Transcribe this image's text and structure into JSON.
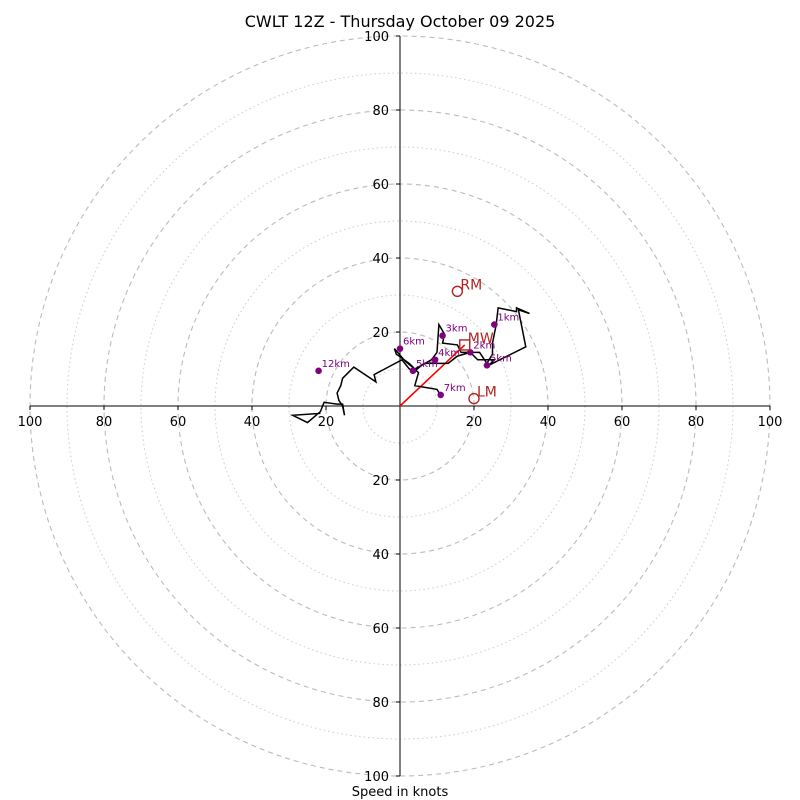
{
  "chart_data": {
    "type": "hodograph",
    "title": "CWLT 12Z - Thursday October 09 2025",
    "xlabel": "Speed in knots",
    "rmax": 100,
    "ring_major": [
      20,
      40,
      60,
      80,
      100
    ],
    "ring_minor": [
      10,
      30,
      50,
      70,
      90
    ],
    "x_tick_labels": [
      "100",
      "80",
      "60",
      "40",
      "20",
      "20",
      "40",
      "60",
      "80",
      "100"
    ],
    "x_tick_values": [
      -100,
      -80,
      -60,
      -40,
      -20,
      20,
      40,
      60,
      80,
      100
    ],
    "y_tick_labels": [
      "100",
      "80",
      "60",
      "40",
      "20",
      "20",
      "40",
      "60",
      "80",
      "100"
    ],
    "y_tick_values": [
      100,
      80,
      60,
      40,
      20,
      -20,
      -40,
      -60,
      -80,
      -100
    ],
    "colors": {
      "trace": "#000000",
      "markers": "#800080",
      "storm": "#b22222",
      "shear_vector": "#ff0000",
      "grid": "#bbbbbb"
    },
    "trace": [
      [
        10.8,
        3.2
      ],
      [
        10.0,
        4.5
      ],
      [
        4.0,
        5.5
      ],
      [
        5.0,
        9.0
      ],
      [
        2.5,
        11.5
      ],
      [
        -1.0,
        14.0
      ],
      [
        -1.5,
        15.5
      ],
      [
        1.5,
        12.0
      ],
      [
        4.0,
        10.0
      ],
      [
        8.5,
        12.5
      ],
      [
        10.0,
        14.5
      ],
      [
        10.5,
        22.0
      ],
      [
        12.0,
        19.5
      ],
      [
        11.5,
        17.0
      ],
      [
        15.5,
        16.5
      ],
      [
        16.5,
        14.5
      ],
      [
        19.0,
        14.5
      ],
      [
        21.5,
        14.5
      ],
      [
        23.5,
        11.5
      ],
      [
        25.0,
        14.0
      ],
      [
        25.0,
        17.0
      ],
      [
        26.0,
        22.0
      ],
      [
        26.5,
        26.5
      ],
      [
        31.5,
        25.5
      ],
      [
        31.5,
        26.5
      ],
      [
        35.0,
        25.0
      ],
      [
        32.0,
        26.0
      ],
      [
        34.0,
        16.0
      ],
      [
        24.0,
        11.0
      ],
      [
        25.5,
        12.5
      ],
      [
        21.0,
        12.5
      ],
      [
        19.0,
        14.5
      ],
      [
        15.5,
        13.5
      ],
      [
        13.0,
        11.5
      ],
      [
        9.5,
        11.5
      ],
      [
        6.5,
        11.5
      ],
      [
        4.0,
        9.5
      ],
      [
        2.5,
        10.0
      ],
      [
        0.5,
        12.5
      ],
      [
        -7.0,
        8.5
      ],
      [
        -6.5,
        6.5
      ],
      [
        -12.5,
        10.5
      ],
      [
        -15.5,
        7.5
      ],
      [
        -16.0,
        5.5
      ],
      [
        -17.0,
        3.5
      ],
      [
        -16.5,
        1.5
      ],
      [
        -15.5,
        0.0
      ],
      [
        -15.0,
        -2.5
      ],
      [
        -15.5,
        0.5
      ],
      [
        -17.0,
        0.5
      ],
      [
        -20.5,
        1.0
      ],
      [
        -21.5,
        -1.5
      ],
      [
        -25.0,
        -4.5
      ],
      [
        -29.0,
        -2.5
      ],
      [
        -21.5,
        -2.0
      ]
    ],
    "height_markers": [
      {
        "label": "1km",
        "u": 25.5,
        "v": 22.0
      },
      {
        "label": "2km",
        "u": 19.0,
        "v": 14.5
      },
      {
        "label": "3km",
        "u": 11.5,
        "v": 19.0
      },
      {
        "label": "4km",
        "u": 9.5,
        "v": 12.5
      },
      {
        "label": "5km",
        "u": 3.5,
        "v": 9.5
      },
      {
        "label": "6km",
        "u": 0.0,
        "v": 15.5
      },
      {
        "label": "7km",
        "u": 11.0,
        "v": 3.0
      },
      {
        "label": "12km",
        "u": -22.0,
        "v": 9.5
      },
      {
        "label": "5km",
        "u": 23.5,
        "v": 11.0
      }
    ],
    "storm_motions": [
      {
        "label": "RM",
        "u": 15.5,
        "v": 31.0,
        "symbol": "circle"
      },
      {
        "label": "MW",
        "u": 17.5,
        "v": 16.5,
        "symbol": "square"
      },
      {
        "label": "LM",
        "u": 20.0,
        "v": 2.0,
        "symbol": "circle"
      }
    ],
    "shear_vector": {
      "u0": 0,
      "v0": 0,
      "u1": 17.5,
      "v1": 16.5
    }
  }
}
